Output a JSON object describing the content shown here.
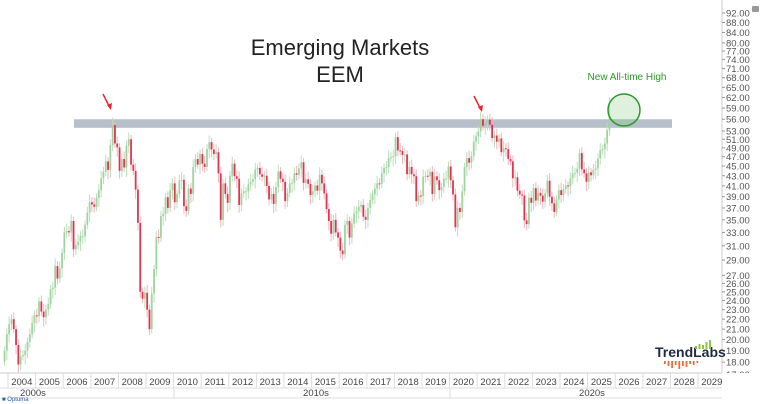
{
  "chart_data": {
    "type": "candlestick",
    "title": "Emerging Markets",
    "subtitle": "EEM",
    "scale": "log",
    "ylim": [
      17,
      92
    ],
    "y_ticks": [
      92,
      88,
      84,
      80,
      77,
      74,
      71,
      68,
      65,
      62,
      59,
      56,
      53,
      51,
      49,
      47,
      45,
      43,
      41,
      39,
      37,
      35,
      33,
      31,
      29,
      27,
      26,
      25,
      24,
      23,
      22,
      21,
      20,
      19,
      18,
      17
    ],
    "y_tick_format": "2dp",
    "x_years": [
      "2004",
      "2005",
      "2006",
      "2007",
      "2008",
      "2009",
      "2010",
      "2011",
      "2012",
      "2013",
      "2014",
      "2015",
      "2016",
      "2017",
      "2018",
      "2019",
      "2020",
      "2021",
      "2022",
      "2023",
      "2024",
      "2025",
      "2026",
      "2027",
      "2028",
      "2029"
    ],
    "x_decades": [
      "2000s",
      "2010s",
      "2020s"
    ],
    "start_month": "2003-11",
    "monthly_close": [
      19.0,
      20.5,
      21.5,
      22.0,
      21.0,
      19.5,
      17.8,
      18.5,
      18.6,
      19.0,
      19.8,
      20.5,
      21.6,
      22.4,
      22.3,
      23.9,
      22.8,
      22.2,
      23.0,
      23.6,
      25.3,
      25.5,
      28.2,
      26.6,
      27.9,
      30.0,
      33.0,
      33.2,
      33.0,
      34.8,
      30.5,
      31.1,
      31.6,
      32.4,
      32.4,
      34.2,
      36.2,
      38.0,
      37.6,
      37.2,
      38.8,
      40.2,
      42.5,
      43.8,
      46.0,
      44.2,
      49.6,
      54.5,
      50.0,
      49.1,
      44.0,
      46.5,
      44.7,
      49.5,
      51.0,
      45.3,
      44.0,
      40.3,
      34.5,
      25.0,
      24.2,
      24.9,
      23.0,
      21.0,
      24.8,
      27.8,
      32.3,
      32.2,
      35.6,
      36.0,
      38.9,
      37.0,
      40.2,
      41.5,
      38.0,
      39.5,
      42.1,
      42.2,
      37.3,
      36.5,
      40.5,
      39.5,
      44.8,
      46.5,
      45.3,
      47.6,
      45.5,
      44.8,
      48.7,
      50.3,
      48.6,
      47.6,
      48.0,
      43.5,
      35.0,
      41.5,
      39.5,
      37.9,
      43.0,
      45.5,
      42.9,
      42.4,
      37.5,
      39.6,
      40.0,
      40.0,
      41.3,
      41.8,
      42.3,
      44.3,
      44.6,
      43.3,
      42.8,
      43.0,
      41.0,
      38.5,
      39.5,
      37.7,
      40.8,
      43.9,
      42.4,
      41.8,
      38.2,
      39.7,
      41.5,
      41.6,
      43.5,
      43.2,
      44.5,
      45.8,
      41.6,
      42.3,
      41.4,
      39.3,
      40.0,
      41.1,
      40.1,
      43.2,
      41.5,
      39.6,
      36.8,
      34.8,
      32.8,
      35.0,
      33.0,
      32.2,
      30.3,
      29.8,
      34.2,
      34.8,
      32.2,
      34.4,
      36.0,
      36.4,
      37.2,
      37.5,
      35.5,
      35.0,
      37.0,
      38.4,
      39.4,
      40.5,
      41.5,
      41.4,
      43.5,
      44.6,
      44.8,
      46.7,
      46.9,
      47.1,
      51.5,
      48.4,
      48.3,
      47.4,
      47.5,
      43.3,
      44.8,
      43.3,
      42.9,
      38.2,
      39.2,
      39.1,
      42.8,
      43.0,
      42.9,
      43.8,
      39.5,
      42.9,
      42.1,
      40.2,
      40.8,
      42.4,
      42.5,
      44.9,
      42.1,
      39.4,
      33.8,
      37.0,
      36.3,
      40.0,
      44.8,
      46.7,
      45.7,
      47.1,
      50.4,
      51.7,
      52.9,
      56.0,
      54.3,
      55.1,
      55.9,
      54.6,
      51.3,
      51.9,
      50.4,
      51.2,
      48.0,
      48.9,
      48.7,
      46.5,
      46.0,
      42.5,
      42.7,
      40.1,
      39.4,
      39.2,
      34.9,
      34.3,
      38.8,
      37.9,
      40.6,
      38.3,
      39.7,
      39.2,
      38.1,
      39.6,
      42.0,
      39.0,
      37.8,
      36.3,
      38.5,
      40.2,
      39.3,
      40.4,
      41.1,
      40.9,
      42.5,
      43.5,
      43.6,
      44.5,
      47.8,
      44.3,
      43.5,
      41.8,
      43.7,
      43.1,
      44.2,
      44.5,
      46.6,
      48.5,
      48.7,
      50.0,
      53.2,
      57.0
    ],
    "all_time_high": {
      "month": "2025-10",
      "value": 62
    },
    "resistance_band": [
      53.8,
      56.0
    ],
    "annotations": {
      "new_high_label": "New All-time High",
      "arrows": [
        "2007-10",
        "2021-02"
      ]
    },
    "colors": {
      "up": "#9fd39f",
      "down": "#e8314f",
      "band": "#b7bfca",
      "annotation": "#2a9a2a",
      "arrow": "#e8262a"
    }
  },
  "branding": {
    "logo": "TrendLabs",
    "footer": "Optuma"
  }
}
